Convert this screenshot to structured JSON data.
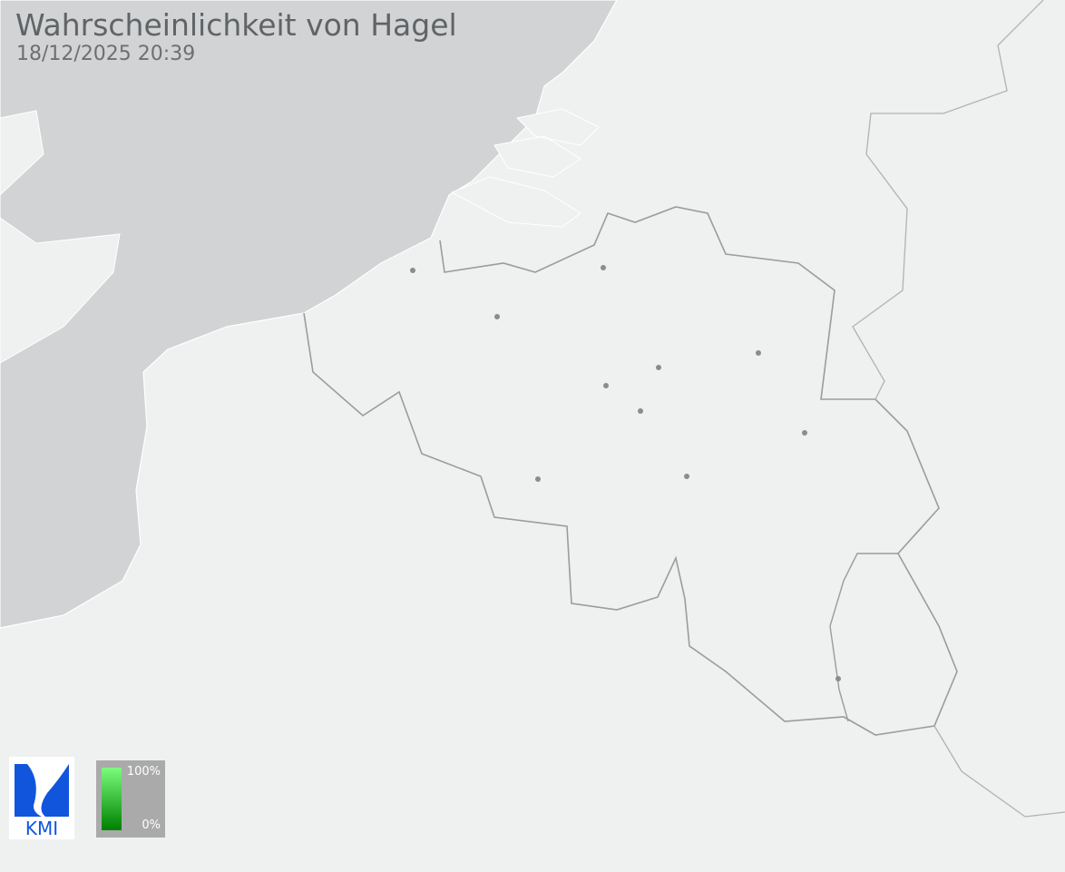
{
  "header": {
    "title": "Wahrscheinlichkeit von Hagel",
    "timestamp": "18/12/2025 20:39"
  },
  "logo": {
    "text": "KMI",
    "color": "#1155dd"
  },
  "legend": {
    "max_label": "100%",
    "min_label": "0%",
    "color_high": "#7cfc7c",
    "color_low": "#008000"
  },
  "colors": {
    "land": "#eff0f0",
    "sea": "#d1d3d4",
    "border": "#9a9c9e",
    "city": "#8a8c8e"
  }
}
